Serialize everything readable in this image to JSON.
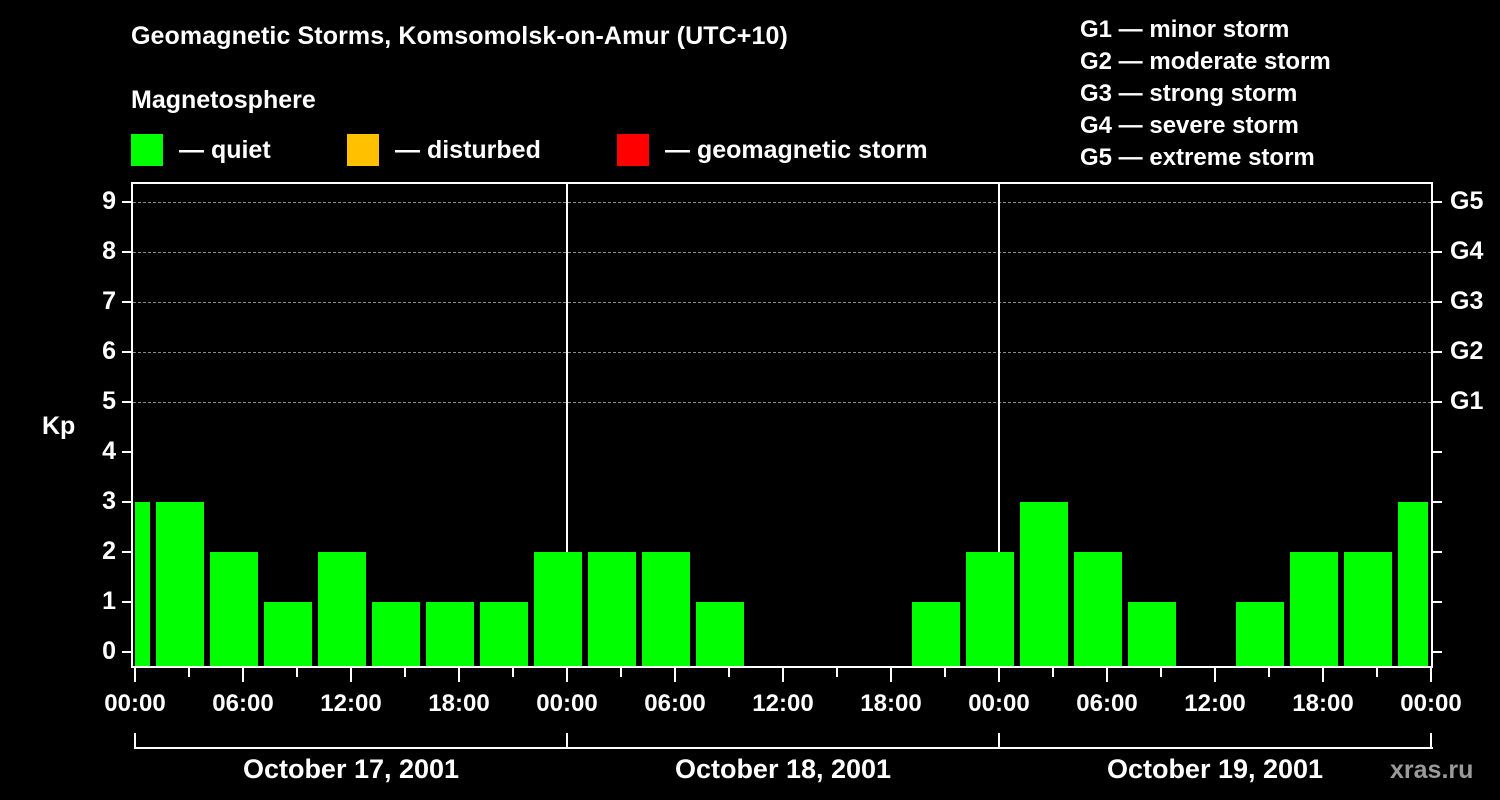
{
  "header": {
    "title": "Geomagnetic Storms, Komsomolsk-on-Amur (UTC+10)",
    "subtitle": "Magnetosphere"
  },
  "legend": {
    "items": [
      {
        "label": "— quiet",
        "color": "#00ff00"
      },
      {
        "label": "— disturbed",
        "color": "#ffc000"
      },
      {
        "label": "— geomagnetic storm",
        "color": "#ff0000"
      }
    ]
  },
  "storm_scale": {
    "items": [
      "G1 — minor storm",
      "G2 — moderate storm",
      "G3 — strong storm",
      "G4 — severe storm",
      "G5 — extreme storm"
    ]
  },
  "axes": {
    "ylabel": "Kp",
    "yticks": [
      "0",
      "1",
      "2",
      "3",
      "4",
      "5",
      "6",
      "7",
      "8",
      "9"
    ],
    "right_ticks": {
      "G1": "5",
      "G2": "6",
      "G3": "7",
      "G4": "8",
      "G5": "9"
    },
    "right_labels": [
      "G1",
      "G2",
      "G3",
      "G4",
      "G5"
    ],
    "xticks": [
      "00:00",
      "06:00",
      "12:00",
      "18:00",
      "00:00",
      "06:00",
      "12:00",
      "18:00",
      "00:00",
      "06:00",
      "12:00",
      "18:00",
      "00:00"
    ],
    "dates": [
      "October 17, 2001",
      "October 18, 2001",
      "October 19, 2001"
    ]
  },
  "watermark": "xras.ru",
  "chart_data": {
    "type": "bar",
    "title": "Geomagnetic Storms, Komsomolsk-on-Amur (UTC+10)",
    "subtitle": "Magnetosphere",
    "xlabel": "",
    "ylabel": "Kp",
    "ylim": [
      0,
      9
    ],
    "grid": "horizontal dashed at Kp 5-9",
    "legend": [
      "quiet",
      "disturbed",
      "geomagnetic storm"
    ],
    "legend_colors": [
      "#00ff00",
      "#ffc000",
      "#ff0000"
    ],
    "right_axis": {
      "5": "G1",
      "6": "G2",
      "7": "G3",
      "8": "G4",
      "9": "G5"
    },
    "categories": [
      "Oct 17 00:00",
      "Oct 17 01:00-04:00",
      "Oct 17 04:00-07:00",
      "Oct 17 07:00-10:00",
      "Oct 17 10:00-13:00",
      "Oct 17 13:00-16:00",
      "Oct 17 16:00-19:00",
      "Oct 17 19:00-22:00",
      "Oct 17 22:00-01:00",
      "Oct 18 01:00-04:00",
      "Oct 18 04:00-07:00",
      "Oct 18 07:00-10:00",
      "Oct 18 10:00-13:00",
      "Oct 18 13:00-16:00",
      "Oct 18 16:00-19:00",
      "Oct 18 19:00-22:00",
      "Oct 18 22:00-01:00",
      "Oct 19 01:00-04:00",
      "Oct 19 04:00-07:00",
      "Oct 19 07:00-10:00",
      "Oct 19 10:00-13:00",
      "Oct 19 13:00-16:00",
      "Oct 19 16:00-19:00",
      "Oct 19 19:00-22:00",
      "Oct 19 22:00-00:00"
    ],
    "values": [
      3,
      3,
      2,
      1,
      2,
      1,
      1,
      1,
      2,
      2,
      2,
      1,
      0,
      0,
      0,
      1,
      2,
      3,
      2,
      1,
      0,
      1,
      2,
      2,
      3
    ],
    "status": "all quiet"
  }
}
